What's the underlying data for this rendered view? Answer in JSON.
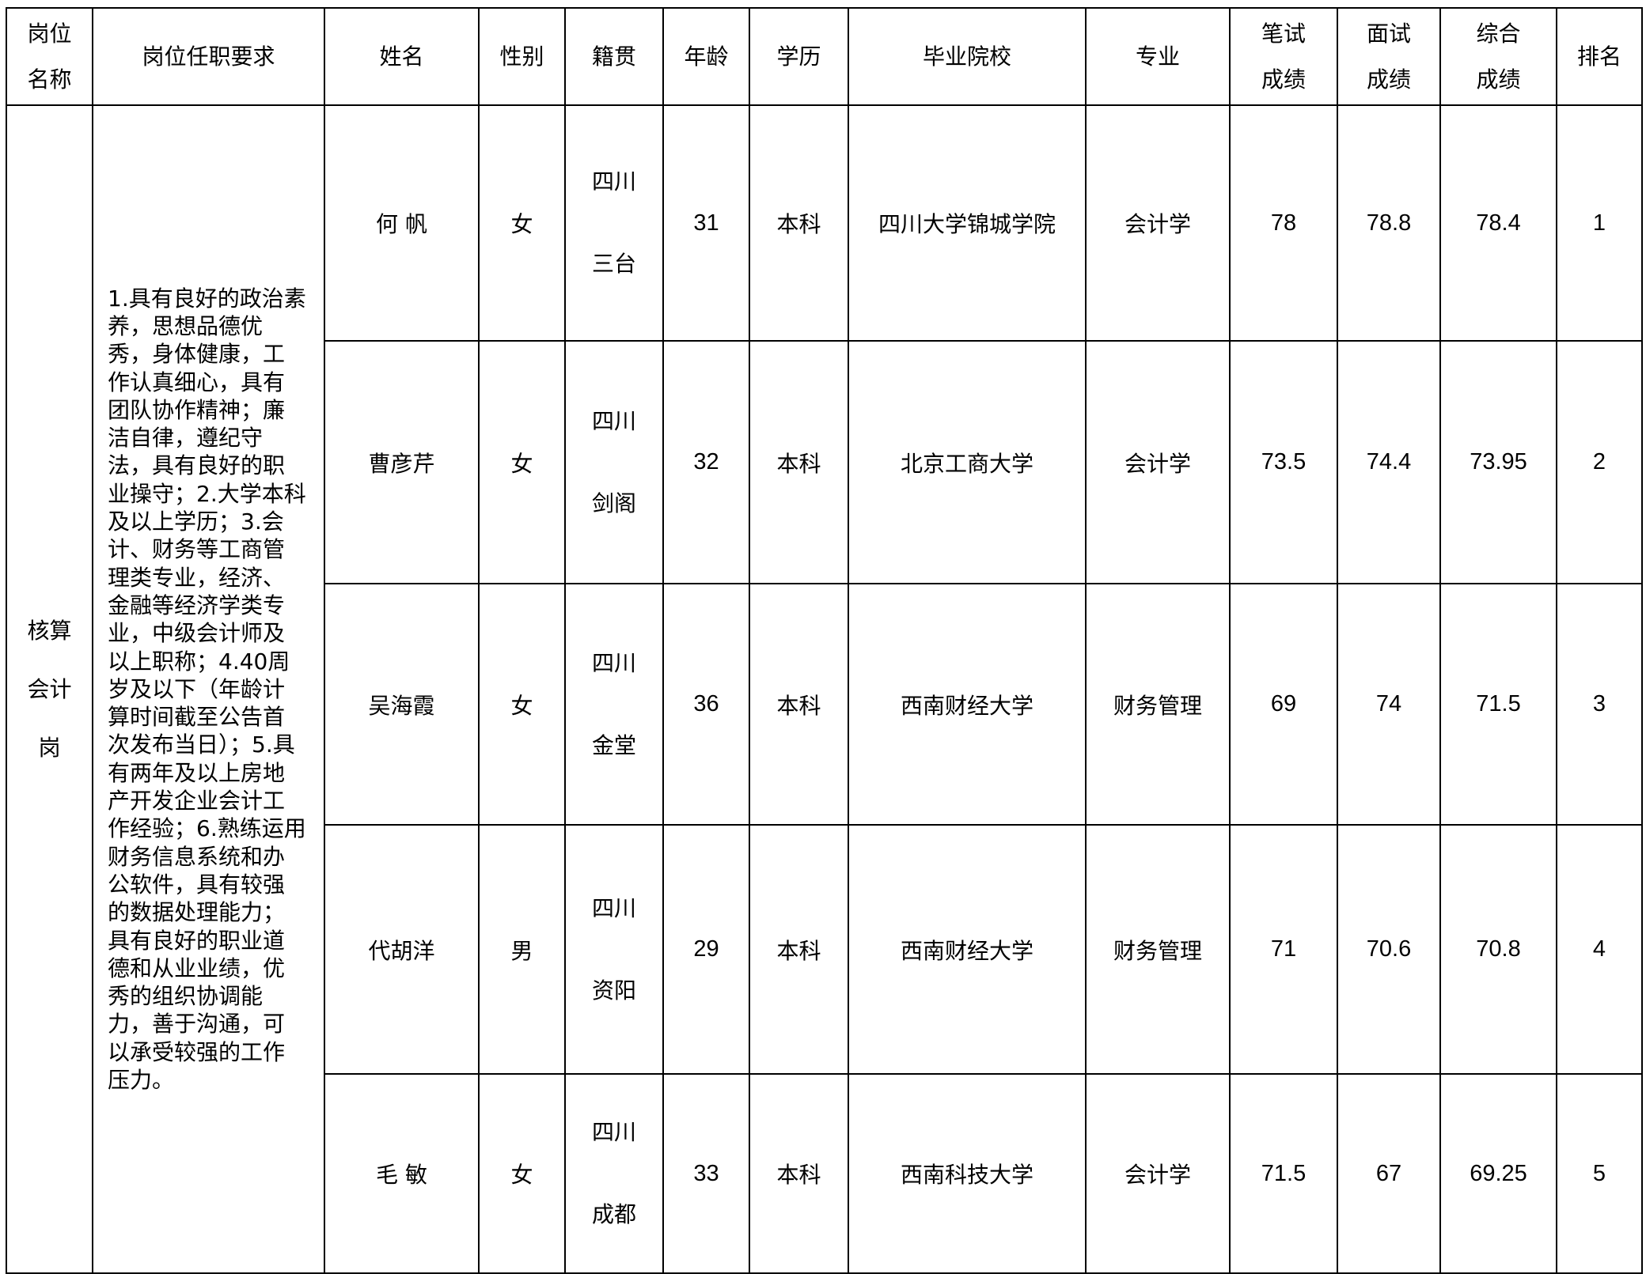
{
  "headers": {
    "position": [
      "岗位",
      "名称"
    ],
    "requirements": "岗位任职要求",
    "name": "姓名",
    "gender": "性别",
    "origin": "籍贯",
    "age": "年龄",
    "education": "学历",
    "school": "毕业院校",
    "major": "专业",
    "written": [
      "笔试",
      "成绩"
    ],
    "interview": [
      "面试",
      "成绩"
    ],
    "total": [
      "综合",
      "成绩"
    ],
    "rank": "排名"
  },
  "position": [
    "核算",
    "会计",
    "岗"
  ],
  "requirements": "1.具有良好的政治素养，思想品德优秀，身体健康，工作认真细心，具有团队协作精神；廉洁自律，遵纪守法，具有良好的职业操守；2.大学本科及以上学历；3.会计、财务等工商管理类专业，经济、金融等经济学类专业，中级会计师及以上职称；4.40周岁及以下（年龄计算时间截至公告首次发布当日）；5.具有两年及以上房地产开发企业会计工作经验；6.熟练运用财务信息系统和办公软件，具有较强的数据处理能力；具有良好的职业道德和从业业绩，优秀的组织协调能力，善于沟通，可以承受较强的工作压力。",
  "rows": [
    {
      "name": "何  帆",
      "gender": "女",
      "origin": [
        "四川",
        "三台"
      ],
      "age": "31",
      "education": "本科",
      "school": "四川大学锦城学院",
      "major": "会计学",
      "written": "78",
      "interview": "78.8",
      "total": "78.4",
      "rank": "1"
    },
    {
      "name": "曹彦芹",
      "gender": "女",
      "origin": [
        "四川",
        "剑阁"
      ],
      "age": "32",
      "education": "本科",
      "school": "北京工商大学",
      "major": "会计学",
      "written": "73.5",
      "interview": "74.4",
      "total": "73.95",
      "rank": "2"
    },
    {
      "name": "吴海霞",
      "gender": "女",
      "origin": [
        "四川",
        "金堂"
      ],
      "age": "36",
      "education": "本科",
      "school": "西南财经大学",
      "major": "财务管理",
      "written": "69",
      "interview": "74",
      "total": "71.5",
      "rank": "3"
    },
    {
      "name": "代胡洋",
      "gender": "男",
      "origin": [
        "四川",
        "资阳"
      ],
      "age": "29",
      "education": "本科",
      "school": "西南财经大学",
      "major": "财务管理",
      "written": "71",
      "interview": "70.6",
      "total": "70.8",
      "rank": "4"
    },
    {
      "name": "毛  敏",
      "gender": "女",
      "origin": [
        "四川",
        "成都"
      ],
      "age": "33",
      "education": "本科",
      "school": "西南科技大学",
      "major": "会计学",
      "written": "71.5",
      "interview": "67",
      "total": "69.25",
      "rank": "5"
    }
  ]
}
